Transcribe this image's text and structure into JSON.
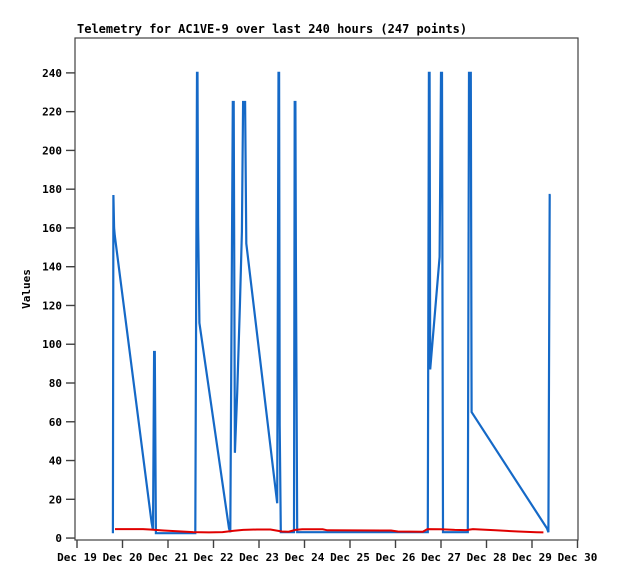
{
  "chart_data": {
    "type": "line",
    "title": "Telemetry for AC1VE-9 over last 240 hours (247 points)",
    "ylabel": "Values",
    "xlabel": "",
    "grid": false,
    "legend": "none",
    "xlim_days": [
      -0.044,
      11.011
    ],
    "ylim": [
      -1,
      258
    ],
    "y_ticks": [
      0,
      20,
      40,
      60,
      80,
      100,
      120,
      140,
      160,
      180,
      200,
      220,
      240
    ],
    "x_ticks": [
      {
        "day": 0,
        "label": "Dec 19"
      },
      {
        "day": 1,
        "label": "Dec 20"
      },
      {
        "day": 2,
        "label": "Dec 21"
      },
      {
        "day": 3,
        "label": "Dec 22"
      },
      {
        "day": 4,
        "label": "Dec 23"
      },
      {
        "day": 5,
        "label": "Dec 24"
      },
      {
        "day": 6,
        "label": "Dec 25"
      },
      {
        "day": 7,
        "label": "Dec 26"
      },
      {
        "day": 8,
        "label": "Dec 27"
      },
      {
        "day": 9,
        "label": "Dec 28"
      },
      {
        "day": 10,
        "label": "Dec 29"
      },
      {
        "day": 11,
        "label": "Dec 30"
      }
    ],
    "colors": {
      "series_blue": "#1569c7",
      "series_red": "#e00000",
      "border": "#404040",
      "title_text": "#000000"
    },
    "series": [
      {
        "name": "telemetry-blue",
        "color": "#1569c7",
        "width": 2.2,
        "points": [
          [
            0.79,
            2.5
          ],
          [
            0.8,
            177
          ],
          [
            0.815,
            160
          ],
          [
            0.83,
            156
          ],
          [
            1.64,
            8
          ],
          [
            1.67,
            4
          ],
          [
            1.695,
            96
          ],
          [
            1.71,
            96
          ],
          [
            1.735,
            2.5
          ],
          [
            2.6,
            2.5
          ],
          [
            2.637,
            240
          ],
          [
            2.648,
            240
          ],
          [
            2.662,
            162
          ],
          [
            2.69,
            111
          ],
          [
            3.34,
            5
          ],
          [
            3.37,
            3
          ],
          [
            3.425,
            225
          ],
          [
            3.445,
            225
          ],
          [
            3.47,
            44
          ],
          [
            3.52,
            75
          ],
          [
            3.58,
            120
          ],
          [
            3.625,
            158
          ],
          [
            3.65,
            225
          ],
          [
            3.695,
            225
          ],
          [
            3.72,
            152
          ],
          [
            4.4,
            18
          ],
          [
            4.428,
            240
          ],
          [
            4.442,
            240
          ],
          [
            4.456,
            58
          ],
          [
            4.48,
            3
          ],
          [
            4.77,
            3
          ],
          [
            4.785,
            225
          ],
          [
            4.8,
            225
          ],
          [
            4.812,
            144
          ],
          [
            4.84,
            3
          ],
          [
            7.71,
            3
          ],
          [
            7.735,
            240
          ],
          [
            7.75,
            240
          ],
          [
            7.762,
            87
          ],
          [
            7.97,
            145
          ],
          [
            7.985,
            192
          ],
          [
            8.0,
            240
          ],
          [
            8.022,
            240
          ],
          [
            8.045,
            3
          ],
          [
            8.59,
            3
          ],
          [
            8.615,
            240
          ],
          [
            8.655,
            240
          ],
          [
            8.672,
            65
          ],
          [
            10.33,
            5
          ],
          [
            10.36,
            3
          ],
          [
            10.39,
            177
          ],
          [
            10.41,
            177
          ]
        ]
      },
      {
        "name": "telemetry-red",
        "color": "#e00000",
        "width": 2,
        "points": [
          [
            0.835,
            4.6
          ],
          [
            1.1,
            4.6
          ],
          [
            1.45,
            4.6
          ],
          [
            1.6,
            4.4
          ],
          [
            1.9,
            3.9
          ],
          [
            2.2,
            3.5
          ],
          [
            2.55,
            3.1
          ],
          [
            2.9,
            2.9
          ],
          [
            3.2,
            3.1
          ],
          [
            3.45,
            3.8
          ],
          [
            3.65,
            4.2
          ],
          [
            3.95,
            4.4
          ],
          [
            4.25,
            4.4
          ],
          [
            4.5,
            3.4
          ],
          [
            4.65,
            3.3
          ],
          [
            4.8,
            4.2
          ],
          [
            4.95,
            4.5
          ],
          [
            5.4,
            4.5
          ],
          [
            5.5,
            4.0
          ],
          [
            6.9,
            3.9
          ],
          [
            7.05,
            3.4
          ],
          [
            7.6,
            3.3
          ],
          [
            7.7,
            4.6
          ],
          [
            8.0,
            4.5
          ],
          [
            8.3,
            4.2
          ],
          [
            8.55,
            4.1
          ],
          [
            8.7,
            4.6
          ],
          [
            9.2,
            4.0
          ],
          [
            9.7,
            3.4
          ],
          [
            10.1,
            3.0
          ],
          [
            10.25,
            2.9
          ]
        ]
      }
    ]
  }
}
